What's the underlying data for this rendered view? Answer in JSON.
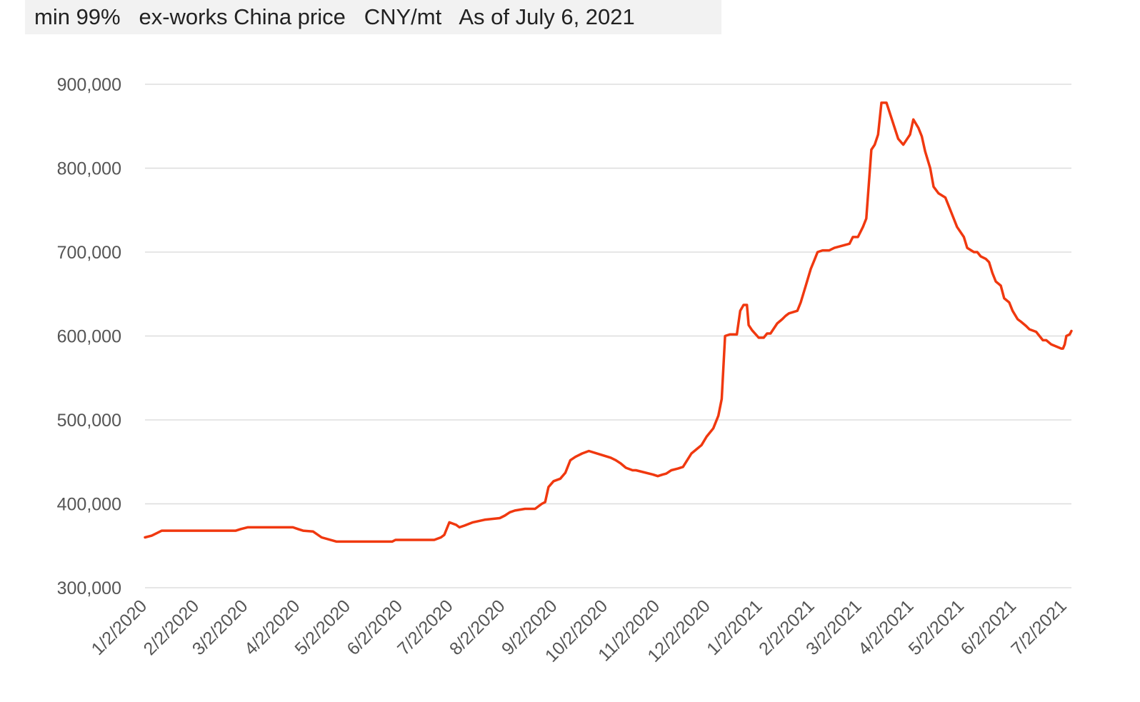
{
  "header": {
    "subtitle": "min 99%   ex-works China price   CNY/mt   As of July 6, 2021"
  },
  "chart_data": {
    "type": "line",
    "title": "",
    "xlabel": "",
    "ylabel": "",
    "ylim": [
      300000,
      900000
    ],
    "yticks": [
      "300,000",
      "400,000",
      "500,000",
      "600,000",
      "700,000",
      "800,000",
      "900,000"
    ],
    "xticks": [
      "1/2/2020",
      "2/2/2020",
      "3/2/2020",
      "4/2/2020",
      "5/2/2020",
      "6/2/2020",
      "7/2/2020",
      "8/2/2020",
      "9/2/2020",
      "10/2/2020",
      "11/2/2020",
      "12/2/2020",
      "1/2/2021",
      "2/2/2021",
      "3/2/2021",
      "4/2/2021",
      "5/2/2021",
      "6/2/2021",
      "7/2/2021"
    ],
    "grid": true,
    "line_color": "#f0380f",
    "series": [
      {
        "x": [
          "2020-01-02",
          "2020-01-06",
          "2020-01-09",
          "2020-01-12",
          "2020-01-17",
          "2020-02-01",
          "2020-02-25",
          "2020-02-28",
          "2020-03-03",
          "2020-03-15",
          "2020-03-30",
          "2020-04-02",
          "2020-04-05",
          "2020-04-11",
          "2020-04-16",
          "2020-04-25",
          "2020-05-10",
          "2020-05-28",
          "2020-05-30",
          "2020-06-15",
          "2020-06-22",
          "2020-06-26",
          "2020-06-28",
          "2020-07-01",
          "2020-07-05",
          "2020-07-07",
          "2020-07-10",
          "2020-07-15",
          "2020-07-22",
          "2020-07-31",
          "2020-08-03",
          "2020-08-06",
          "2020-08-09",
          "2020-08-15",
          "2020-08-21",
          "2020-08-25",
          "2020-08-27",
          "2020-08-29",
          "2020-09-01",
          "2020-09-05",
          "2020-09-08",
          "2020-09-11",
          "2020-09-14",
          "2020-09-18",
          "2020-09-22",
          "2020-10-05",
          "2020-10-08",
          "2020-10-11",
          "2020-10-14",
          "2020-10-18",
          "2020-10-20",
          "2020-10-30",
          "2020-11-02",
          "2020-11-05",
          "2020-11-07",
          "2020-11-10",
          "2020-11-14",
          "2020-11-17",
          "2020-11-22",
          "2020-11-25",
          "2020-11-28",
          "2020-12-01",
          "2020-12-05",
          "2020-12-08",
          "2020-12-10",
          "2020-12-12",
          "2020-12-15",
          "2020-12-19",
          "2020-12-21",
          "2020-12-23",
          "2020-12-25",
          "2020-12-26",
          "2020-12-28",
          "2021-01-01",
          "2021-01-03",
          "2021-01-04",
          "2021-01-06",
          "2021-01-08",
          "2021-01-12",
          "2021-01-15",
          "2021-01-17",
          "2021-01-19",
          "2021-01-24",
          "2021-01-26",
          "2021-01-29",
          "2021-02-01",
          "2021-02-03",
          "2021-02-05",
          "2021-02-08",
          "2021-02-10",
          "2021-02-12",
          "2021-02-15",
          "2021-02-24",
          "2021-02-26",
          "2021-03-01",
          "2021-03-04",
          "2021-03-06",
          "2021-03-09",
          "2021-03-11",
          "2021-03-13",
          "2021-03-15",
          "2021-03-18",
          "2021-03-25",
          "2021-03-28",
          "2021-04-01",
          "2021-04-03",
          "2021-04-06",
          "2021-04-08",
          "2021-04-10",
          "2021-04-13",
          "2021-04-15",
          "2021-04-18",
          "2021-04-22",
          "2021-04-24",
          "2021-04-27",
          "2021-04-29",
          "2021-05-03",
          "2021-05-05",
          "2021-05-09",
          "2021-05-11",
          "2021-05-13",
          "2021-05-16",
          "2021-05-18",
          "2021-05-20",
          "2021-05-22",
          "2021-05-25",
          "2021-05-27",
          "2021-05-30",
          "2021-06-01",
          "2021-06-04",
          "2021-06-06",
          "2021-06-09",
          "2021-06-11",
          "2021-06-15",
          "2021-06-19",
          "2021-06-21",
          "2021-06-24",
          "2021-06-30",
          "2021-07-01",
          "2021-07-02",
          "2021-07-03",
          "2021-07-05",
          "2021-07-06"
        ],
        "y": [
          360000,
          362000,
          365000,
          368000,
          368000,
          368000,
          368000,
          370000,
          372000,
          372000,
          372000,
          370000,
          368000,
          367000,
          360000,
          355000,
          355000,
          355000,
          357000,
          357000,
          357000,
          360000,
          363000,
          378000,
          375000,
          372000,
          374000,
          378000,
          381000,
          383000,
          386000,
          390000,
          392000,
          394000,
          394000,
          400000,
          402000,
          420000,
          427000,
          430000,
          437000,
          452000,
          456000,
          460000,
          463000,
          455000,
          452000,
          448000,
          443000,
          440000,
          440000,
          435000,
          433000,
          435000,
          436000,
          440000,
          442000,
          444000,
          460000,
          465000,
          470000,
          480000,
          490000,
          505000,
          525000,
          600000,
          602000,
          602000,
          630000,
          637000,
          637000,
          613000,
          607000,
          598000,
          598000,
          598000,
          603000,
          603000,
          615000,
          620000,
          624000,
          627000,
          630000,
          640000,
          660000,
          680000,
          690000,
          700000,
          702000,
          702000,
          702000,
          705000,
          710000,
          718000,
          718000,
          730000,
          740000,
          822000,
          828000,
          840000,
          878000,
          878000,
          835000,
          828000,
          840000,
          858000,
          848000,
          838000,
          820000,
          800000,
          778000,
          770000,
          765000,
          755000,
          740000,
          730000,
          718000,
          705000,
          700000,
          700000,
          695000,
          692000,
          688000,
          675000,
          665000,
          660000,
          645000,
          640000,
          630000,
          620000,
          617000,
          612000,
          608000,
          605000,
          595000,
          595000,
          590000,
          585000,
          585000,
          590000,
          600000,
          602000,
          606000
        ]
      }
    ]
  }
}
